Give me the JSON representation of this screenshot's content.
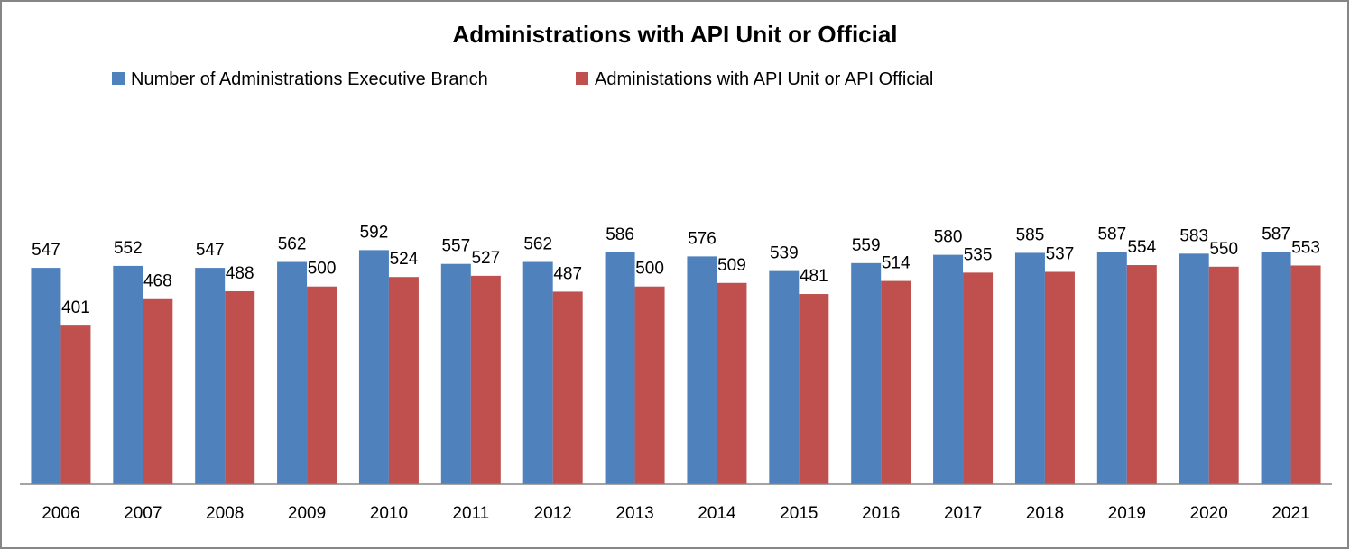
{
  "chart_data": {
    "type": "bar",
    "title": "Administrations with API Unit or Official",
    "xlabel": "",
    "ylabel": "",
    "ylim": [
      0,
      700
    ],
    "grid": false,
    "legend_position": "top",
    "categories": [
      "2006",
      "2007",
      "2008",
      "2009",
      "2010",
      "2011",
      "2012",
      "2013",
      "2014",
      "2015",
      "2016",
      "2017",
      "2018",
      "2019",
      "2020",
      "2021"
    ],
    "series": [
      {
        "name": "Number of Administrations Executive Branch",
        "color": "#4F81BD",
        "values": [
          547,
          552,
          547,
          562,
          592,
          557,
          562,
          586,
          576,
          539,
          559,
          580,
          585,
          587,
          583,
          587
        ]
      },
      {
        "name": "Administations with API Unit or API Official",
        "color": "#C0504D",
        "values": [
          401,
          468,
          488,
          500,
          524,
          527,
          487,
          500,
          509,
          481,
          514,
          535,
          537,
          554,
          550,
          553
        ]
      }
    ]
  }
}
